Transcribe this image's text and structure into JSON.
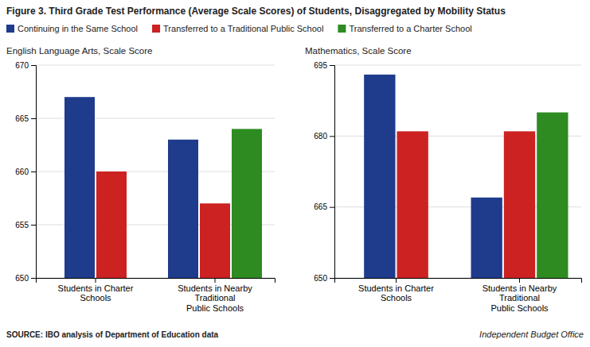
{
  "title": "Figure 3. Third Grade Test Performance (Average Scale Scores) of Students, Disaggregated by Mobility Status",
  "annotations": [
    "SOURCE: IBO analysis of Department of Education data",
    "Independent Budget Office"
  ],
  "chart_data": [
    {
      "type": "bar",
      "title": "English Language Arts, Scale Score",
      "categories": [
        "Students in Charter\nSchools",
        "Students in Nearby\nTraditional\nPublic Schools"
      ],
      "series": [
        {
          "name": "Continuing in the Same School",
          "color": "#1f3b8c",
          "values": [
            667,
            663
          ]
        },
        {
          "name": "Transferred to a Traditional Public School",
          "color": "#cc2222",
          "values": [
            660,
            657
          ]
        },
        {
          "name": "Transferred to a Charter School",
          "color": "#2e8b22",
          "values": [
            null,
            664
          ]
        }
      ],
      "ylim": [
        650,
        670
      ],
      "yticks": [
        650,
        655,
        660,
        665,
        670
      ],
      "grid": true,
      "legend": "top-left"
    },
    {
      "type": "bar",
      "title": "Mathematics, Scale Score",
      "categories": [
        "Students in Charter\nSchools",
        "Students in Nearby\nTraditional\nPublic Schools"
      ],
      "series": [
        {
          "name": "Continuing in the Same School",
          "color": "#1f3b8c",
          "values": [
            693,
            667
          ]
        },
        {
          "name": "Transferred to a Traditional Public School",
          "color": "#cc2222",
          "values": [
            681,
            681
          ]
        },
        {
          "name": "Transferred to a Charter School",
          "color": "#2e8b22",
          "values": [
            null,
            685
          ]
        }
      ],
      "ylim": [
        650,
        695
      ],
      "yticks": [
        650,
        665,
        680,
        695
      ],
      "grid": true
    }
  ]
}
